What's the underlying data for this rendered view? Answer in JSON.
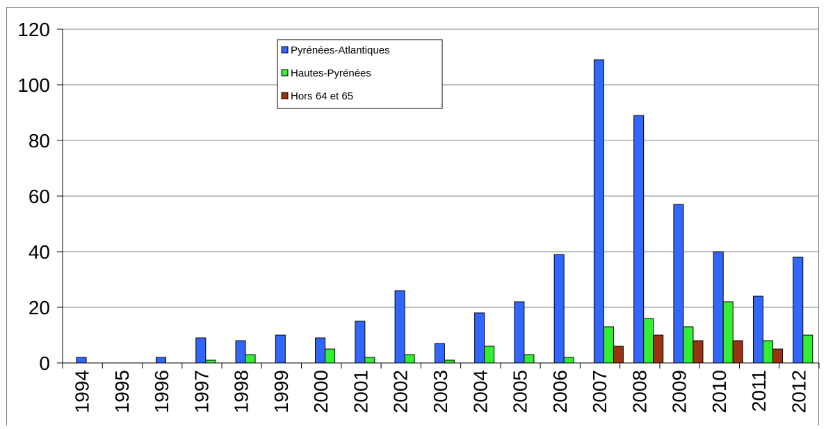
{
  "chart_data": {
    "type": "bar",
    "categories": [
      "1994",
      "1995",
      "1996",
      "1997",
      "1998",
      "1999",
      "2000",
      "2001",
      "2002",
      "2003",
      "2004",
      "2005",
      "2006",
      "2007",
      "2008",
      "2009",
      "2010",
      "2011",
      "2012"
    ],
    "series": [
      {
        "name": "Pyrénées-Atlantiques",
        "color": "#3366ff",
        "values": [
          2,
          0,
          2,
          9,
          8,
          10,
          9,
          15,
          26,
          7,
          18,
          22,
          39,
          109,
          89,
          57,
          40,
          24,
          38
        ]
      },
      {
        "name": "Hautes-Pyrénées",
        "color": "#33ee33",
        "values": [
          0,
          0,
          0,
          1,
          3,
          0,
          5,
          2,
          3,
          1,
          6,
          3,
          2,
          13,
          16,
          13,
          22,
          8,
          10
        ]
      },
      {
        "name": "Hors 64 et 65",
        "color": "#993311",
        "values": [
          0,
          0,
          0,
          0,
          0,
          0,
          0,
          0,
          0,
          0,
          0,
          0,
          0,
          6,
          10,
          8,
          8,
          5,
          0
        ]
      }
    ],
    "ylim": [
      0,
      120
    ],
    "yticks": [
      "0",
      "20",
      "40",
      "60",
      "80",
      "100",
      "120"
    ],
    "grid": true,
    "legend_position": "top-center"
  }
}
